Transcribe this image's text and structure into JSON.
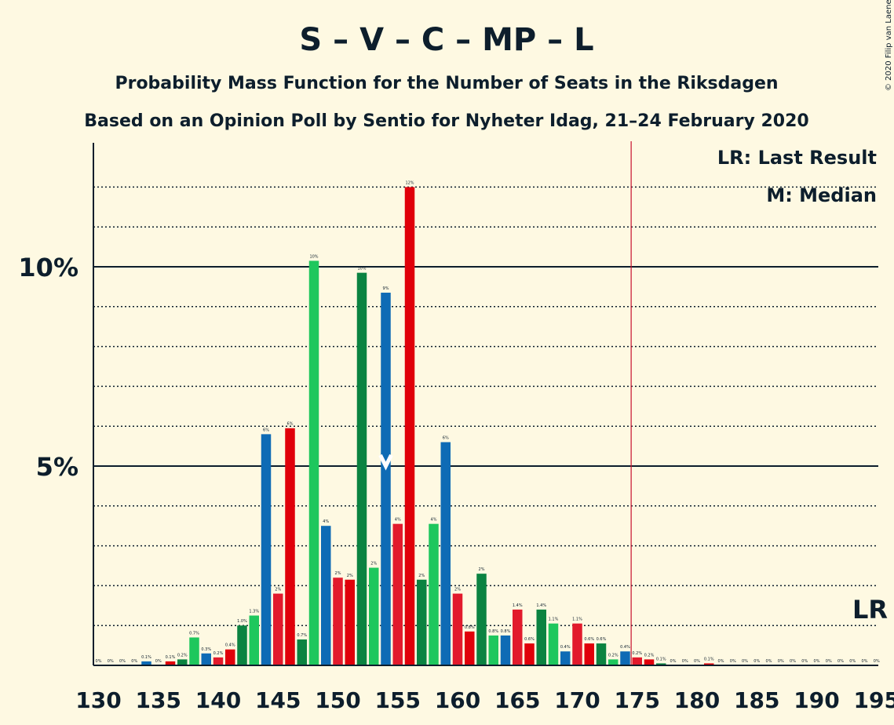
{
  "chart_data": {
    "type": "bar",
    "title": "S – V – C – MP – L",
    "subtitle_1": "Probability Mass Function for the Number of Seats in the Riksdagen",
    "subtitle_2": "Based on an Opinion Poll by Sentio for Nyheter Idag, 21–24 February 2020",
    "copyright": "© 2020 Filip van Laenen",
    "legend": {
      "last_result": "LR: Last Result",
      "median": "M: Median"
    },
    "lr_marker_label": "LR",
    "last_result_seat": 175,
    "median_seat": 154,
    "x_range": [
      130,
      195
    ],
    "ylim": [
      0,
      13
    ],
    "y_ticks": [
      {
        "value": 5,
        "label": "5%"
      },
      {
        "value": 10,
        "label": "10%"
      }
    ],
    "x_ticks": [
      130,
      135,
      140,
      145,
      150,
      155,
      160,
      165,
      170,
      175,
      180,
      185,
      190,
      195
    ],
    "colors": {
      "blue": "#0e6bb5",
      "red": "#e21a2c",
      "green": "#1ec75d",
      "darkgreen": "#0b8341",
      "crimson": "#e0000a",
      "lr_line": "#c8102e",
      "axis": "#0d1e2c"
    },
    "bars": [
      {
        "seat": 130,
        "value": 0,
        "label": "0%",
        "color": "blue"
      },
      {
        "seat": 131,
        "value": 0,
        "label": "0%",
        "color": "red"
      },
      {
        "seat": 132,
        "value": 0,
        "label": "0%",
        "color": "green"
      },
      {
        "seat": 133,
        "value": 0,
        "label": "0%",
        "color": "darkgreen"
      },
      {
        "seat": 134,
        "value": 0.1,
        "label": "0.1%",
        "color": "blue"
      },
      {
        "seat": 135,
        "value": 0,
        "label": "0%",
        "color": "green"
      },
      {
        "seat": 136,
        "value": 0.1,
        "label": "0.1%",
        "color": "crimson"
      },
      {
        "seat": 137,
        "value": 0.15,
        "label": "0.2%",
        "color": "darkgreen"
      },
      {
        "seat": 138,
        "value": 0.7,
        "label": "0.7%",
        "color": "green"
      },
      {
        "seat": 139,
        "value": 0.3,
        "label": "0.3%",
        "color": "blue"
      },
      {
        "seat": 140,
        "value": 0.2,
        "label": "0.2%",
        "color": "red"
      },
      {
        "seat": 141,
        "value": 0.4,
        "label": "0.4%",
        "color": "crimson"
      },
      {
        "seat": 142,
        "value": 1.0,
        "label": "1.0%",
        "color": "darkgreen"
      },
      {
        "seat": 143,
        "value": 1.25,
        "label": "1.3%",
        "color": "green"
      },
      {
        "seat": 144,
        "value": 5.8,
        "label": "6%",
        "color": "blue"
      },
      {
        "seat": 145,
        "value": 1.8,
        "label": "2%",
        "color": "red"
      },
      {
        "seat": 146,
        "value": 5.95,
        "label": "6%",
        "color": "crimson"
      },
      {
        "seat": 147,
        "value": 0.65,
        "label": "0.7%",
        "color": "darkgreen"
      },
      {
        "seat": 148,
        "value": 10.15,
        "label": "10%",
        "color": "green"
      },
      {
        "seat": 149,
        "value": 3.5,
        "label": "4%",
        "color": "blue"
      },
      {
        "seat": 150,
        "value": 2.2,
        "label": "2%",
        "color": "red"
      },
      {
        "seat": 151,
        "value": 2.15,
        "label": "2%",
        "color": "crimson"
      },
      {
        "seat": 152,
        "value": 9.85,
        "label": "10%",
        "color": "darkgreen"
      },
      {
        "seat": 153,
        "value": 2.45,
        "label": "2%",
        "color": "green"
      },
      {
        "seat": 154,
        "value": 9.35,
        "label": "9%",
        "color": "blue"
      },
      {
        "seat": 155,
        "value": 3.55,
        "label": "4%",
        "color": "red"
      },
      {
        "seat": 156,
        "value": 12.0,
        "label": "12%",
        "color": "crimson"
      },
      {
        "seat": 157,
        "value": 2.15,
        "label": "2%",
        "color": "darkgreen"
      },
      {
        "seat": 158,
        "value": 3.55,
        "label": "4%",
        "color": "green"
      },
      {
        "seat": 159,
        "value": 5.6,
        "label": "6%",
        "color": "blue"
      },
      {
        "seat": 160,
        "value": 1.8,
        "label": "2%",
        "color": "red"
      },
      {
        "seat": 161,
        "value": 0.85,
        "label": "0.8%",
        "color": "crimson"
      },
      {
        "seat": 162,
        "value": 2.3,
        "label": "2%",
        "color": "darkgreen"
      },
      {
        "seat": 163,
        "value": 0.75,
        "label": "0.8%",
        "color": "green"
      },
      {
        "seat": 164,
        "value": 0.75,
        "label": "0.8%",
        "color": "blue"
      },
      {
        "seat": 165,
        "value": 1.4,
        "label": "1.4%",
        "color": "red"
      },
      {
        "seat": 166,
        "value": 0.55,
        "label": "0.6%",
        "color": "crimson"
      },
      {
        "seat": 167,
        "value": 1.4,
        "label": "1.4%",
        "color": "darkgreen"
      },
      {
        "seat": 168,
        "value": 1.05,
        "label": "1.1%",
        "color": "green"
      },
      {
        "seat": 169,
        "value": 0.35,
        "label": "0.4%",
        "color": "blue"
      },
      {
        "seat": 170,
        "value": 1.05,
        "label": "1.1%",
        "color": "red"
      },
      {
        "seat": 171,
        "value": 0.55,
        "label": "0.6%",
        "color": "crimson"
      },
      {
        "seat": 172,
        "value": 0.55,
        "label": "0.6%",
        "color": "darkgreen"
      },
      {
        "seat": 173,
        "value": 0.15,
        "label": "0.2%",
        "color": "green"
      },
      {
        "seat": 174,
        "value": 0.35,
        "label": "0.4%",
        "color": "blue"
      },
      {
        "seat": 175,
        "value": 0.2,
        "label": "0.2%",
        "color": "red"
      },
      {
        "seat": 176,
        "value": 0.15,
        "label": "0.2%",
        "color": "crimson"
      },
      {
        "seat": 177,
        "value": 0.05,
        "label": "0.1%",
        "color": "darkgreen"
      },
      {
        "seat": 178,
        "value": 0,
        "label": "0%",
        "color": "green"
      },
      {
        "seat": 179,
        "value": 0,
        "label": "0%",
        "color": "blue"
      },
      {
        "seat": 180,
        "value": 0,
        "label": "0%",
        "color": "red"
      },
      {
        "seat": 181,
        "value": 0.05,
        "label": "0.1%",
        "color": "crimson"
      },
      {
        "seat": 182,
        "value": 0,
        "label": "0%",
        "color": "darkgreen"
      },
      {
        "seat": 183,
        "value": 0,
        "label": "0%",
        "color": "green"
      },
      {
        "seat": 184,
        "value": 0,
        "label": "0%",
        "color": "blue"
      },
      {
        "seat": 185,
        "value": 0,
        "label": "0%",
        "color": "red"
      },
      {
        "seat": 186,
        "value": 0,
        "label": "0%",
        "color": "crimson"
      },
      {
        "seat": 187,
        "value": 0,
        "label": "0%",
        "color": "darkgreen"
      },
      {
        "seat": 188,
        "value": 0,
        "label": "0%",
        "color": "green"
      },
      {
        "seat": 189,
        "value": 0,
        "label": "0%",
        "color": "blue"
      },
      {
        "seat": 190,
        "value": 0,
        "label": "0%",
        "color": "red"
      },
      {
        "seat": 191,
        "value": 0,
        "label": "0%",
        "color": "crimson"
      },
      {
        "seat": 192,
        "value": 0,
        "label": "0%",
        "color": "darkgreen"
      },
      {
        "seat": 193,
        "value": 0,
        "label": "0%",
        "color": "green"
      },
      {
        "seat": 194,
        "value": 0,
        "label": "0%",
        "color": "blue"
      },
      {
        "seat": 195,
        "value": 0,
        "label": "0%",
        "color": "red"
      }
    ]
  }
}
